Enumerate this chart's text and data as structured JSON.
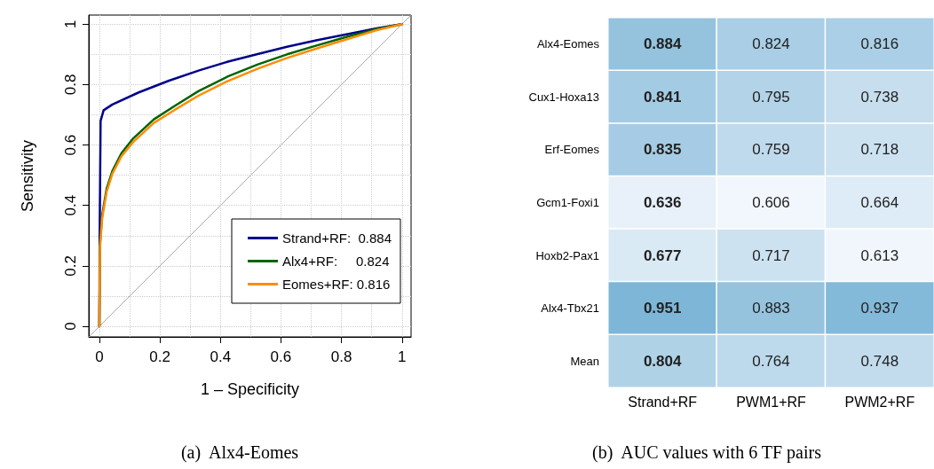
{
  "chart_data": [
    {
      "type": "line",
      "title": "(a)  Alx4-Eomes",
      "xlabel": "1 – Specificity",
      "ylabel": "Sensitivity",
      "xlim": [
        -0.035,
        1.03
      ],
      "ylim": [
        -0.035,
        1.03
      ],
      "xticks": [
        0,
        0.2,
        0.4,
        0.6,
        0.8,
        1
      ],
      "yticks": [
        0,
        0.2,
        0.4,
        0.6,
        0.8,
        1
      ],
      "grid": true,
      "legend": "bottom right",
      "marker": "none",
      "line_style": "solid",
      "series": [
        {
          "type": "line",
          "color": "#aaaaaa",
          "x": [
            -0.035,
            1.03
          ],
          "values": [
            -0.035,
            1.03
          ]
        },
        {
          "name": "Strand+RF:  0.884",
          "color": "#00008b",
          "x": [
            0,
            0.001,
            0.004,
            0.014,
            0.043,
            0.13,
            0.23,
            0.33,
            0.425,
            0.52,
            0.62,
            0.72,
            0.82,
            0.916,
            1
          ],
          "values": [
            0,
            0.3,
            0.68,
            0.715,
            0.734,
            0.774,
            0.813,
            0.847,
            0.876,
            0.9,
            0.925,
            0.947,
            0.967,
            0.986,
            1
          ]
        },
        {
          "name": "Alx4+RF:     0.824",
          "color": "#006400",
          "x": [
            0,
            0.002,
            0.009,
            0.024,
            0.043,
            0.073,
            0.112,
            0.18,
            0.25,
            0.327,
            0.425,
            0.524,
            0.62,
            0.72,
            0.818,
            0.916,
            1
          ],
          "values": [
            0,
            0.27,
            0.367,
            0.455,
            0.514,
            0.573,
            0.622,
            0.685,
            0.73,
            0.778,
            0.827,
            0.867,
            0.9,
            0.93,
            0.958,
            0.984,
            1
          ]
        },
        {
          "name": "Eomes+RF: 0.816",
          "color": "#ff8c00",
          "x": [
            0,
            0.002,
            0.009,
            0.024,
            0.043,
            0.073,
            0.112,
            0.18,
            0.25,
            0.327,
            0.425,
            0.524,
            0.62,
            0.72,
            0.818,
            0.916,
            1
          ],
          "values": [
            0,
            0.26,
            0.355,
            0.445,
            0.505,
            0.563,
            0.61,
            0.673,
            0.717,
            0.763,
            0.812,
            0.853,
            0.888,
            0.92,
            0.95,
            0.98,
            1
          ]
        }
      ]
    },
    {
      "type": "heatmap",
      "title": "(b)  AUC values with 6 TF pairs",
      "data_labels": true,
      "categories": [
        "Strand+RF",
        "PWM1+RF",
        "PWM2+RF"
      ],
      "y_categories": [
        "Alx4-Eomes",
        "Cux1-Hoxa13",
        "Erf-Eomes",
        "Gcm1-Foxi1",
        "Hoxb2-Pax1",
        "Alx4-Tbx21",
        "Mean"
      ],
      "cells": [
        [
          0.884,
          0.824,
          0.816
        ],
        [
          0.841,
          0.795,
          0.738
        ],
        [
          0.835,
          0.759,
          0.718
        ],
        [
          0.636,
          0.606,
          0.664
        ],
        [
          0.677,
          0.717,
          0.613
        ],
        [
          0.951,
          0.883,
          0.937
        ],
        [
          0.804,
          0.764,
          0.748
        ]
      ]
    }
  ]
}
